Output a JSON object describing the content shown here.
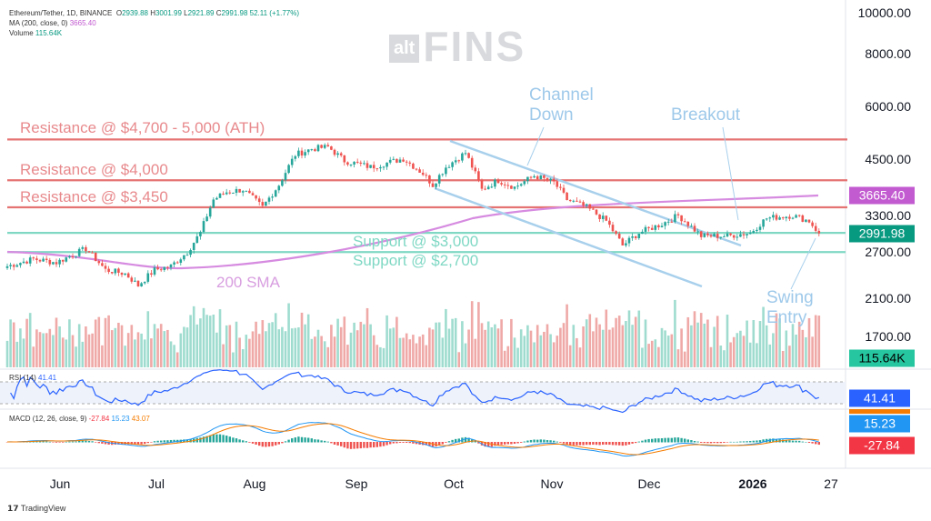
{
  "header": {
    "symbol": "Ethereum/Tether, 1D, BINANCE",
    "o": "2939.88",
    "h": "3001.99",
    "l": "2921.89",
    "c": "2991.98",
    "chg": "52.11 (+1.77%)",
    "ma_label": "MA (200, close, 0)",
    "ma_value": "3665.40",
    "vol_label": "Volume",
    "vol_value": "115.64K",
    "rsi_label": "RSI (14)",
    "rsi_value": "41.41",
    "macd_label": "MACD (12, 26, close, 9)",
    "macd_hist": "-27.84",
    "macd_line": "15.23",
    "macd_signal": "43.07"
  },
  "watermark": {
    "alt": "alt",
    "fins": "FINS"
  },
  "tags": {
    "ma": "3665.40",
    "price": "2991.98",
    "volume": "115.64K",
    "rsi": "41.41",
    "macd_line": "15.23",
    "macd_hist": "-27.84"
  },
  "annotations": {
    "r1": "Resistance @ $4,700 - 5,000 (ATH)",
    "r2": "Resistance @ $4,000",
    "r3": "Resistance @ $3,450",
    "s1": "Support @ $3,000",
    "s2": "Support @ $2,700",
    "sma": "200 SMA",
    "channel": "Channel\nDown",
    "breakout": "Breakout",
    "swing": "Swing\nEntry"
  },
  "footer": {
    "brand": "TradingView"
  },
  "colors": {
    "up": "#26a69a",
    "down": "#ef5350",
    "resistance": "#e57373",
    "support": "#80d8c4",
    "sma": "#d68be0",
    "channel": "#a8d0ec",
    "rsi": "#2962ff"
  },
  "chart_data": {
    "type": "candlestick",
    "title": "Ethereum/Tether, 1D, BINANCE",
    "y_scale": "log",
    "y_ticks": [
      10000,
      8000,
      6000,
      4500,
      3300,
      2700,
      2100,
      1700
    ],
    "y_tick_labels": [
      "10000.00",
      "8000.00",
      "6000.00",
      "4500.00",
      "3300.00",
      "2700.00",
      "2100.00",
      "1700.00"
    ],
    "x_ticks": [
      "Jun",
      "Jul",
      "Aug",
      "Sep",
      "Oct",
      "Nov",
      "Dec",
      "2026",
      "27"
    ],
    "close_path": [
      [
        0,
        2500
      ],
      [
        8,
        2600
      ],
      [
        15,
        2550
      ],
      [
        24,
        2750
      ],
      [
        30,
        2450
      ],
      [
        36,
        2400
      ],
      [
        40,
        2250
      ],
      [
        45,
        2450
      ],
      [
        50,
        2500
      ],
      [
        55,
        2700
      ],
      [
        59,
        3000
      ],
      [
        63,
        3600
      ],
      [
        67,
        3750
      ],
      [
        72,
        3800
      ],
      [
        78,
        3450
      ],
      [
        83,
        3900
      ],
      [
        88,
        4600
      ],
      [
        93,
        4750
      ],
      [
        98,
        4800
      ],
      [
        103,
        4450
      ],
      [
        111,
        4300
      ],
      [
        121,
        4500
      ],
      [
        127,
        4150
      ],
      [
        130,
        3900
      ],
      [
        134,
        4300
      ],
      [
        140,
        4650
      ],
      [
        145,
        3800
      ],
      [
        150,
        4000
      ],
      [
        155,
        3850
      ],
      [
        161,
        4100
      ],
      [
        167,
        3950
      ],
      [
        171,
        3600
      ],
      [
        177,
        3450
      ],
      [
        183,
        3200
      ],
      [
        188,
        2800
      ],
      [
        193,
        3000
      ],
      [
        200,
        3150
      ],
      [
        205,
        3300
      ],
      [
        212,
        2950
      ],
      [
        220,
        2950
      ],
      [
        227,
        3000
      ],
      [
        232,
        3250
      ],
      [
        240,
        3300
      ],
      [
        245,
        3200
      ],
      [
        248,
        2992
      ]
    ],
    "horizontal_levels": [
      {
        "label": "Resistance",
        "value": 5000
      },
      {
        "label": "Resistance",
        "value": 4000
      },
      {
        "label": "Resistance",
        "value": 3450
      },
      {
        "label": "Support",
        "value": 3000
      },
      {
        "label": "Support",
        "value": 2700
      }
    ],
    "ma200_last": 3665.4,
    "last_close": 2991.98,
    "last_volume": "115.64K",
    "rsi_last": 41.41,
    "macd": {
      "line": 15.23,
      "signal": 43.07,
      "hist": -27.84
    }
  }
}
